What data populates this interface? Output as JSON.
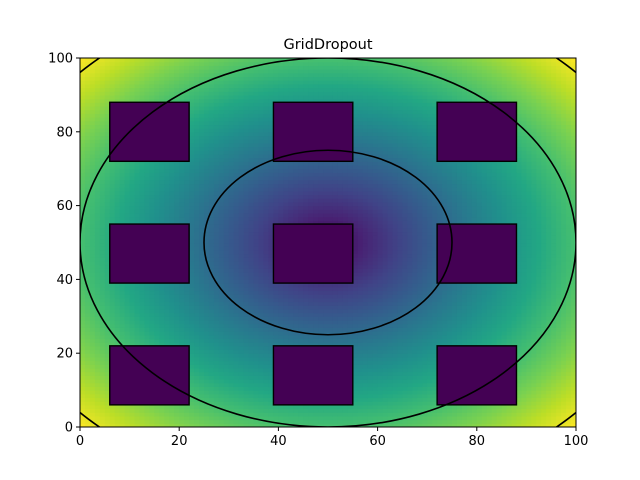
{
  "chart_data": {
    "type": "heatmap",
    "title": "GridDropout",
    "xlabel": "",
    "ylabel": "",
    "xlim": [
      0,
      100
    ],
    "ylim": [
      0,
      100
    ],
    "x_ticks": [
      0,
      20,
      40,
      60,
      80,
      100
    ],
    "y_ticks": [
      0,
      20,
      40,
      60,
      80,
      100
    ],
    "field": {
      "description_of_values": "radial distance from center (50, 50)",
      "center": [
        50,
        50
      ],
      "colormap": "viridis"
    },
    "contour_levels": [
      25,
      50,
      68
    ],
    "dropout_holes": [
      {
        "x0": 6,
        "x1": 22,
        "y0": 72,
        "y1": 88
      },
      {
        "x0": 39,
        "x1": 55,
        "y0": 72,
        "y1": 88
      },
      {
        "x0": 72,
        "x1": 88,
        "y0": 72,
        "y1": 88
      },
      {
        "x0": 6,
        "x1": 22,
        "y0": 39,
        "y1": 55
      },
      {
        "x0": 39,
        "x1": 55,
        "y0": 39,
        "y1": 55
      },
      {
        "x0": 72,
        "x1": 88,
        "y0": 39,
        "y1": 55
      },
      {
        "x0": 6,
        "x1": 22,
        "y0": 6,
        "y1": 22
      },
      {
        "x0": 39,
        "x1": 55,
        "y0": 6,
        "y1": 22
      },
      {
        "x0": 72,
        "x1": 88,
        "y0": 6,
        "y1": 22
      }
    ],
    "hole_value": 0,
    "grid": false,
    "legend": "none"
  }
}
